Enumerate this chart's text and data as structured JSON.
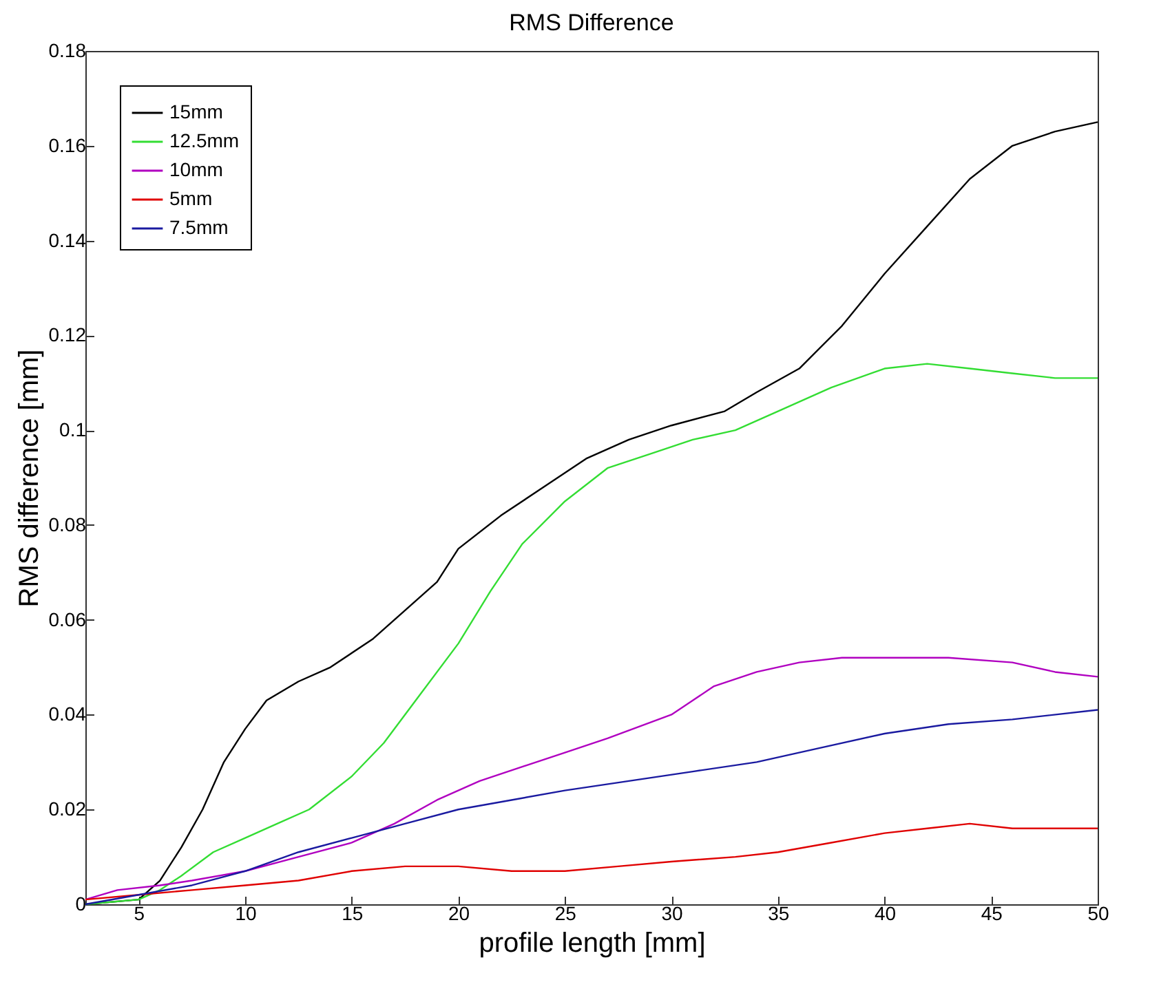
{
  "chart_data": {
    "type": "line",
    "title": "RMS Difference",
    "xlabel": "profile length [mm]",
    "ylabel": "RMS difference [mm]",
    "xlim": [
      2.5,
      50
    ],
    "xticks": [
      5,
      10,
      15,
      20,
      25,
      30,
      35,
      40,
      45,
      50
    ],
    "ylim": [
      0,
      0.18
    ],
    "yticks": [
      0,
      0.02,
      0.04,
      0.06,
      0.08,
      0.1,
      0.12,
      0.14,
      0.16,
      0.18
    ],
    "grid": false,
    "legend": "top left",
    "marker": "none",
    "line_style": "solid",
    "series": [
      {
        "name": "15mm",
        "color": "#000000",
        "x": [
          2.5,
          5,
          6,
          7,
          8,
          9,
          10,
          11,
          12.5,
          14,
          16,
          17.5,
          19,
          20,
          22,
          24,
          26,
          28,
          30,
          32.5,
          34,
          36,
          38,
          40,
          42,
          44,
          46,
          48,
          50
        ],
        "values": [
          0,
          0.001,
          0.005,
          0.012,
          0.02,
          0.03,
          0.037,
          0.043,
          0.047,
          0.05,
          0.056,
          0.062,
          0.068,
          0.075,
          0.082,
          0.088,
          0.094,
          0.098,
          0.101,
          0.104,
          0.108,
          0.113,
          0.122,
          0.133,
          0.143,
          0.153,
          0.16,
          0.163,
          0.165
        ]
      },
      {
        "name": "12.5mm",
        "color": "#33dd33",
        "x": [
          2.5,
          5,
          6,
          7,
          8.5,
          10,
          11.5,
          13,
          15,
          16.5,
          18,
          20,
          21.5,
          23,
          25,
          27,
          29,
          31,
          33,
          35,
          37.5,
          40,
          42,
          44,
          46,
          48,
          50
        ],
        "values": [
          0,
          0.001,
          0.003,
          0.006,
          0.011,
          0.014,
          0.017,
          0.02,
          0.027,
          0.034,
          0.043,
          0.055,
          0.066,
          0.076,
          0.085,
          0.092,
          0.095,
          0.098,
          0.1,
          0.104,
          0.109,
          0.113,
          0.114,
          0.113,
          0.112,
          0.111,
          0.111
        ]
      },
      {
        "name": "10mm",
        "color": "#b000c0",
        "x": [
          2.5,
          4,
          6,
          7.5,
          10,
          12.5,
          15,
          17,
          19,
          21,
          23,
          25,
          27,
          30,
          32,
          34,
          36,
          38,
          40,
          43,
          46,
          48,
          50
        ],
        "values": [
          0.001,
          0.003,
          0.004,
          0.005,
          0.007,
          0.01,
          0.013,
          0.017,
          0.022,
          0.026,
          0.029,
          0.032,
          0.035,
          0.04,
          0.046,
          0.049,
          0.051,
          0.052,
          0.052,
          0.052,
          0.051,
          0.049,
          0.048
        ]
      },
      {
        "name": "5mm",
        "color": "#e00000",
        "x": [
          2.5,
          5,
          7.5,
          10,
          12.5,
          15,
          17.5,
          20,
          22.5,
          25,
          27.5,
          30,
          33,
          35,
          37.5,
          40,
          42,
          44,
          46,
          50
        ],
        "values": [
          0.001,
          0.002,
          0.003,
          0.004,
          0.005,
          0.007,
          0.008,
          0.008,
          0.007,
          0.007,
          0.008,
          0.009,
          0.01,
          0.011,
          0.013,
          0.015,
          0.016,
          0.017,
          0.016,
          0.016
        ]
      },
      {
        "name": "7.5mm",
        "color": "#1a1aa0",
        "x": [
          2.5,
          5,
          7.5,
          10,
          12.5,
          15,
          17.5,
          20,
          22.5,
          25,
          28,
          31,
          34,
          37,
          40,
          43,
          46,
          50
        ],
        "values": [
          0,
          0.002,
          0.004,
          0.007,
          0.011,
          0.014,
          0.017,
          0.02,
          0.022,
          0.024,
          0.026,
          0.028,
          0.03,
          0.033,
          0.036,
          0.038,
          0.039,
          0.041
        ]
      }
    ]
  }
}
